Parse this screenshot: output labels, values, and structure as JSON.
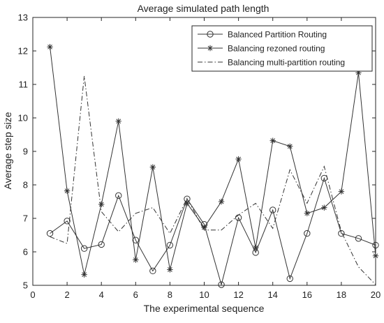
{
  "chart_data": {
    "type": "line",
    "title": "Average simulated path length",
    "xlabel": "The experimental sequence",
    "ylabel": "Average step size",
    "xlim": [
      0,
      20
    ],
    "ylim": [
      5,
      13
    ],
    "xticks": [
      0,
      2,
      4,
      6,
      8,
      10,
      12,
      14,
      16,
      18,
      20
    ],
    "yticks": [
      5,
      6,
      7,
      8,
      9,
      10,
      11,
      12,
      13
    ],
    "grid": false,
    "legend_position": "top-right",
    "series": [
      {
        "name": "Balanced Partition Routing",
        "marker": "circle",
        "line_style": "solid",
        "color": "#333333",
        "x": [
          1,
          2,
          3,
          4,
          5,
          6,
          7,
          8,
          9,
          10,
          11,
          12,
          13,
          14,
          15,
          16,
          17,
          18,
          19,
          20
        ],
        "values": [
          6.55,
          6.92,
          6.1,
          6.22,
          7.68,
          6.35,
          5.43,
          6.2,
          7.58,
          6.82,
          5.02,
          7.02,
          5.98,
          7.25,
          5.2,
          6.55,
          8.2,
          6.55,
          6.4,
          6.2
        ]
      },
      {
        "name": "Balancing rezoned routing",
        "marker": "star",
        "line_style": "solid",
        "color": "#333333",
        "x": [
          1,
          2,
          3,
          4,
          5,
          6,
          7,
          8,
          9,
          10,
          11,
          12,
          13,
          14,
          15,
          16,
          17,
          18,
          19,
          20
        ],
        "values": [
          12.12,
          7.82,
          5.32,
          7.42,
          9.9,
          5.76,
          8.53,
          5.47,
          7.45,
          6.73,
          7.5,
          8.77,
          6.12,
          9.32,
          9.15,
          7.15,
          7.32,
          7.8,
          11.35,
          5.88
        ]
      },
      {
        "name": "Balancing multi-partition routing",
        "marker": "none",
        "line_style": "dashdot",
        "color": "#333333",
        "x": [
          1,
          2,
          3,
          4,
          5,
          6,
          7,
          8,
          9,
          10,
          11,
          12,
          13,
          14,
          15,
          16,
          17,
          18,
          19,
          20
        ],
        "values": [
          6.45,
          6.25,
          11.25,
          7.2,
          6.6,
          7.15,
          7.32,
          6.55,
          7.6,
          6.65,
          6.65,
          7.1,
          7.45,
          6.7,
          8.45,
          7.45,
          8.55,
          6.6,
          5.55,
          5.02
        ]
      }
    ]
  }
}
